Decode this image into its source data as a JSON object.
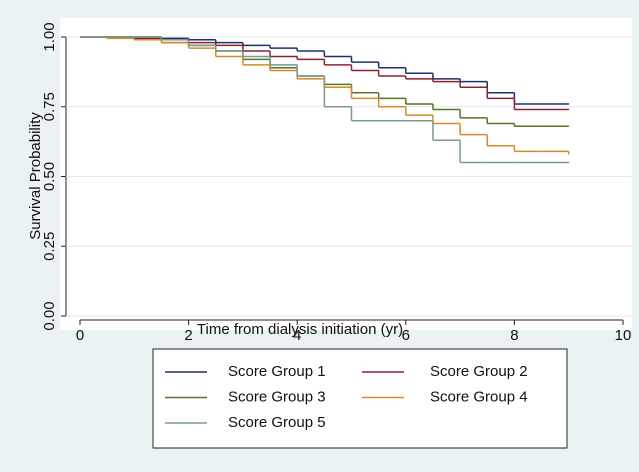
{
  "chart_data": {
    "type": "step",
    "xlabel": "Time from dialysis initiation (yr)",
    "ylabel": "Survival Probability",
    "x": [
      0,
      0.5,
      1,
      1.5,
      2,
      2.5,
      3,
      3.5,
      4,
      4.5,
      5,
      5.5,
      6,
      6.5,
      7,
      7.5,
      8,
      8.5,
      9
    ],
    "series": [
      {
        "name": "Score Group 1",
        "color": "#1f2f6e",
        "values": [
          1.0,
          1.0,
          1.0,
          0.995,
          0.99,
          0.98,
          0.97,
          0.96,
          0.95,
          0.93,
          0.91,
          0.89,
          0.87,
          0.85,
          0.84,
          0.8,
          0.76,
          0.76,
          0.76
        ]
      },
      {
        "name": "Score Group 2",
        "color": "#8b2232",
        "values": [
          1.0,
          1.0,
          0.995,
          0.99,
          0.98,
          0.97,
          0.95,
          0.93,
          0.92,
          0.9,
          0.88,
          0.86,
          0.85,
          0.84,
          0.82,
          0.78,
          0.74,
          0.74,
          0.74
        ]
      },
      {
        "name": "Score Group 3",
        "color": "#55752a",
        "values": [
          1.0,
          1.0,
          0.99,
          0.98,
          0.97,
          0.95,
          0.92,
          0.89,
          0.86,
          0.83,
          0.8,
          0.78,
          0.76,
          0.74,
          0.71,
          0.69,
          0.68,
          0.68,
          0.68
        ]
      },
      {
        "name": "Score Group 4",
        "color": "#d9892a",
        "values": [
          1.0,
          0.995,
          0.99,
          0.98,
          0.96,
          0.93,
          0.9,
          0.88,
          0.85,
          0.82,
          0.78,
          0.75,
          0.72,
          0.69,
          0.65,
          0.61,
          0.59,
          0.59,
          0.58
        ]
      },
      {
        "name": "Score Group 5",
        "color": "#7a9a90",
        "values": [
          1.0,
          1.0,
          1.0,
          0.99,
          0.97,
          0.95,
          0.93,
          0.9,
          0.86,
          0.75,
          0.7,
          0.7,
          0.7,
          0.63,
          0.55,
          0.55,
          0.55,
          0.55,
          0.55
        ]
      }
    ],
    "xlim": [
      0,
      10
    ],
    "xticks": [
      0,
      2,
      4,
      6,
      8,
      10
    ],
    "ylim": [
      0,
      1
    ],
    "yticks": [
      {
        "value": 0,
        "label": "0.00"
      },
      {
        "value": 0.25,
        "label": "0.25"
      },
      {
        "value": 0.5,
        "label": "0.50"
      },
      {
        "value": 0.75,
        "label": "0.75"
      },
      {
        "value": 1,
        "label": "1.00"
      }
    ],
    "grid": true,
    "legend": "bottom"
  }
}
